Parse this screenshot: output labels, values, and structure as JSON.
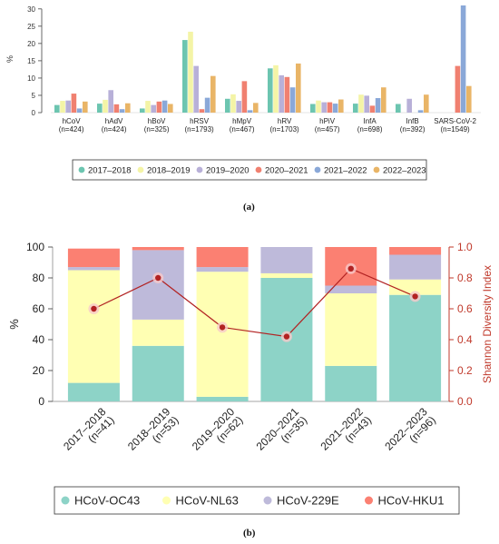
{
  "panel_labels": {
    "a": "(a)",
    "b": "(b)"
  },
  "chart_data": [
    {
      "type": "bar",
      "panel": "a",
      "ylabel": "%",
      "ylim": [
        0,
        31
      ],
      "yticks": [
        0,
        5,
        10,
        15,
        20,
        25,
        30
      ],
      "categories": [
        "hCoV\n(n=424)",
        "hAdV\n(n=424)",
        "hBoV\n(n=325)",
        "hRSV\n(n=1793)",
        "hMpV\n(n=467)",
        "hRV\n(n=1703)",
        "hPiV\n(n=457)",
        "InfA\n(n=698)",
        "InfB\n(n=392)",
        "SARS-CoV-2\n(n=1549)"
      ],
      "series": [
        {
          "name": "2017–2018",
          "color": "#6cc5b0",
          "values": [
            2.2,
            2.6,
            1.2,
            21.0,
            4.0,
            12.8,
            2.5,
            2.6,
            2.5,
            0.0
          ]
        },
        {
          "name": "2018–2019",
          "color": "#f4f4a6",
          "values": [
            3.4,
            3.7,
            3.4,
            23.4,
            5.3,
            13.7,
            3.5,
            5.2,
            0.0,
            0.0
          ]
        },
        {
          "name": "2019–2020",
          "color": "#b8b0d8",
          "values": [
            3.5,
            6.5,
            2.2,
            13.5,
            3.4,
            10.8,
            3.0,
            4.9,
            4.0,
            0.0
          ]
        },
        {
          "name": "2020–2021",
          "color": "#f08070",
          "values": [
            5.5,
            2.4,
            3.2,
            1.0,
            9.1,
            10.3,
            3.0,
            2.0,
            0.0,
            13.5
          ]
        },
        {
          "name": "2021–2022",
          "color": "#8aa8d8",
          "values": [
            1.2,
            1.0,
            3.5,
            4.3,
            0.7,
            7.3,
            2.6,
            4.2,
            0.7,
            31.0
          ]
        },
        {
          "name": "2022–2023",
          "color": "#e9b567",
          "values": [
            3.2,
            2.7,
            2.5,
            10.6,
            2.8,
            14.2,
            3.8,
            7.3,
            5.2,
            7.7
          ]
        }
      ],
      "legend_placement": "bottom"
    },
    {
      "type": "bar",
      "stacked": true,
      "panel": "b",
      "ylabel": "%",
      "ylim": [
        0,
        100
      ],
      "yticks": [
        0,
        20,
        40,
        60,
        80,
        100
      ],
      "y2label": "Shannon Diversity Index",
      "y2lim": [
        0,
        1.0
      ],
      "y2ticks": [
        "0.0",
        "0.2",
        "0.4",
        "0.6",
        "0.8",
        "1.0"
      ],
      "categories": [
        "2017–2018\n(n=41)",
        "2018–2019\n(n=53)",
        "2019–2020\n(n=62)",
        "2020–2021\n(n=35)",
        "2021–2022\n(n=43)",
        "2022–2023\n(n=96)"
      ],
      "series": [
        {
          "name": "HCoV-OC43",
          "color": "#8dd3c7",
          "values": [
            12,
            36,
            3,
            80,
            23,
            69
          ]
        },
        {
          "name": "HCoV-NL63",
          "color": "#ffffb3",
          "values": [
            73,
            17,
            81,
            3,
            47,
            10
          ]
        },
        {
          "name": "HCoV-229E",
          "color": "#bebada",
          "values": [
            2,
            45,
            3,
            17,
            5,
            16
          ]
        },
        {
          "name": "HCoV-HKU1",
          "color": "#fb8072",
          "values": [
            12,
            2,
            13,
            0,
            25,
            5
          ]
        }
      ],
      "line_series": {
        "color": "#b22222",
        "values": [
          0.6,
          0.8,
          0.48,
          0.42,
          0.86,
          0.68
        ]
      },
      "legend_placement": "bottom"
    }
  ]
}
